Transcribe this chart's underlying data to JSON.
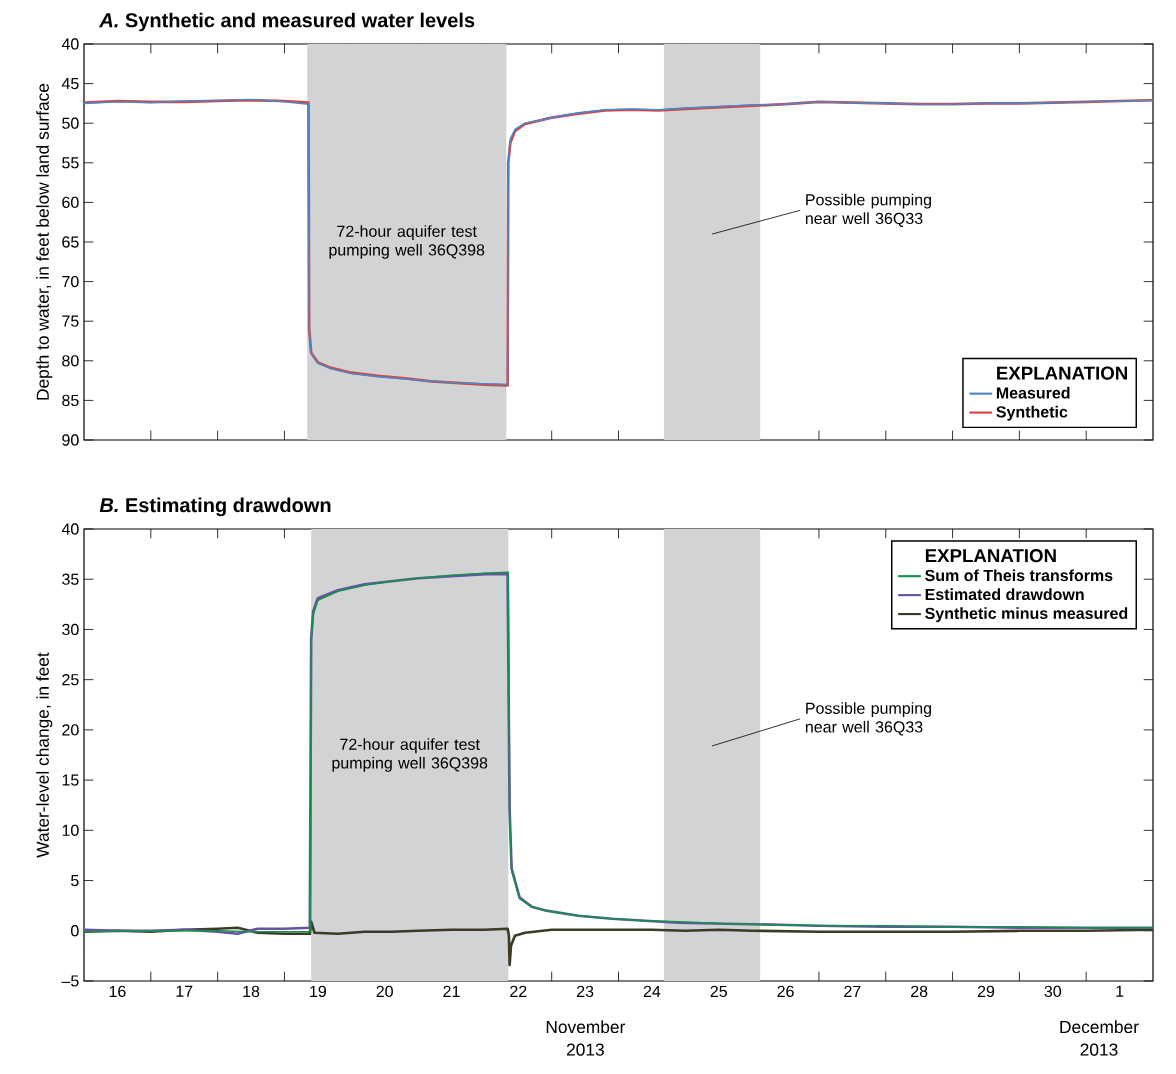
{
  "chart_data": [
    {
      "type": "line",
      "title": "*A.* Synthetic and measured water levels",
      "ylabel": "Depth to water, in feet below land surface",
      "legend_title": "EXPLANATION",
      "legend": "bottom right",
      "tick_labels": "y",
      "xlim": [
        "2013-11-16T00:00",
        "2013-12-02T00:00"
      ],
      "ylim": [
        90,
        40
      ],
      "yticks": [
        40,
        45,
        50,
        55,
        60,
        65,
        70,
        75,
        80,
        85,
        90
      ],
      "xticks": [
        {
          "value": "2013-11-17T00:00",
          "label": null
        },
        {
          "value": "2013-11-18T00:00",
          "label": null
        },
        {
          "value": "2013-11-19T00:00",
          "label": null
        },
        {
          "value": "2013-11-20T00:00",
          "label": null
        },
        {
          "value": "2013-11-21T00:00",
          "label": null
        },
        {
          "value": "2013-11-22T00:00",
          "label": null
        },
        {
          "value": "2013-11-23T00:00",
          "label": null
        },
        {
          "value": "2013-11-24T00:00",
          "label": null
        },
        {
          "value": "2013-11-25T00:00",
          "label": null
        },
        {
          "value": "2013-11-26T00:00",
          "label": null
        },
        {
          "value": "2013-11-27T00:00",
          "label": null
        },
        {
          "value": "2013-11-28T00:00",
          "label": null
        },
        {
          "value": "2013-11-29T00:00",
          "label": null
        },
        {
          "value": "2013-11-30T00:00",
          "label": null
        },
        {
          "value": "2013-12-01T00:00",
          "label": null
        }
      ],
      "bands": [
        {
          "axis": "x",
          "from": "2013-11-19T08:10",
          "to": "2013-11-22T07:41",
          "label": "72-hour aquifer test pumping well 36Q398",
          "color": "#d1d3d4"
        },
        {
          "axis": "x",
          "from": "2013-11-24T16:19",
          "to": "2013-11-26T02:53",
          "label": "Possible pumping near well 36Q33",
          "color": "#d1d3d4"
        }
      ],
      "series": [
        {
          "name": "Measured",
          "color": "#4a86c8",
          "x": [
            "2013-11-16T00:00",
            "2013-11-16T12:00",
            "2013-11-17T00:00",
            "2013-11-17T12:00",
            "2013-11-18T00:00",
            "2013-11-18T12:00",
            "2013-11-19T00:00",
            "2013-11-19T08:38",
            "2013-11-19T08:53",
            "2013-11-19T09:36",
            "2013-11-19T12:00",
            "2013-11-19T16:48",
            "2013-11-20T00:00",
            "2013-11-20T09:36",
            "2013-11-20T19:12",
            "2013-11-21T04:48",
            "2013-11-21T14:24",
            "2013-11-22T00:00",
            "2013-11-22T08:10",
            "2013-11-22T08:24",
            "2013-11-22T09:07",
            "2013-11-22T10:48",
            "2013-11-22T14:24",
            "2013-11-23T00:00",
            "2013-11-23T09:36",
            "2013-11-23T19:12",
            "2013-11-24T04:48",
            "2013-11-24T14:24",
            "2013-11-25T00:00",
            "2013-11-25T12:00",
            "2013-11-26T00:00",
            "2013-11-26T12:00",
            "2013-11-27T00:00",
            "2013-11-27T12:00",
            "2013-11-28T00:00",
            "2013-11-28T12:00",
            "2013-11-29T00:00",
            "2013-11-29T12:00",
            "2013-11-30T00:00",
            "2013-11-30T12:00",
            "2013-12-01T00:00",
            "2013-12-01T12:00",
            "2013-12-02T00:00"
          ],
          "values": [
            47.5,
            47.3,
            47.4,
            47.2,
            47.1,
            47.0,
            47.3,
            47.6,
            76,
            79,
            80.3,
            81,
            81.6,
            82,
            82.3,
            82.6,
            82.8,
            82.9,
            83,
            55,
            52,
            50.8,
            50,
            49.3,
            48.7,
            48.3,
            48.2,
            48.3,
            48.1,
            47.9,
            47.7,
            47.6,
            47.3,
            47.4,
            47.5,
            47.6,
            47.6,
            47.5,
            47.5,
            47.4,
            47.3,
            47.2,
            47.1
          ]
        },
        {
          "name": "Synthetic",
          "color": "#d9443f",
          "x": [
            "2013-11-16T00:00",
            "2013-11-16T12:00",
            "2013-11-17T00:00",
            "2013-11-17T12:00",
            "2013-11-18T00:00",
            "2013-11-18T12:00",
            "2013-11-19T00:00",
            "2013-11-19T08:38",
            "2013-11-19T08:53",
            "2013-11-19T09:36",
            "2013-11-19T12:00",
            "2013-11-19T16:48",
            "2013-11-20T00:00",
            "2013-11-20T09:36",
            "2013-11-20T19:12",
            "2013-11-21T04:48",
            "2013-11-21T14:24",
            "2013-11-22T00:00",
            "2013-11-22T08:10",
            "2013-11-22T08:24",
            "2013-11-22T09:07",
            "2013-11-22T10:48",
            "2013-11-22T14:24",
            "2013-11-23T00:00",
            "2013-11-23T09:36",
            "2013-11-23T19:12",
            "2013-11-24T04:48",
            "2013-11-24T14:24",
            "2013-11-25T00:00",
            "2013-11-25T12:00",
            "2013-11-26T00:00",
            "2013-11-26T12:00",
            "2013-11-27T00:00",
            "2013-11-27T12:00",
            "2013-11-28T00:00",
            "2013-11-28T12:00",
            "2013-11-29T00:00",
            "2013-11-29T12:00",
            "2013-11-30T00:00",
            "2013-11-30T12:00",
            "2013-12-01T00:00",
            "2013-12-01T12:00",
            "2013-12-02T00:00"
          ],
          "values": [
            47.4,
            47.2,
            47.3,
            47.3,
            47.2,
            47.1,
            47.2,
            47.4,
            76,
            79,
            80.2,
            80.9,
            81.5,
            81.9,
            82.2,
            82.6,
            82.8,
            83.0,
            83.1,
            55,
            52.5,
            51,
            50.1,
            49.3,
            48.8,
            48.4,
            48.3,
            48.4,
            48.2,
            48.0,
            47.8,
            47.6,
            47.3,
            47.4,
            47.5,
            47.6,
            47.6,
            47.5,
            47.5,
            47.4,
            47.3,
            47.2,
            47.1
          ]
        }
      ]
    },
    {
      "type": "line",
      "title": "*B.* Estimating drawdown",
      "ylabel": "Water-level change, in feet",
      "legend_title": "EXPLANATION",
      "legend": "top right",
      "xlim": [
        "2013-11-16T00:00",
        "2013-12-02T00:00"
      ],
      "ylim": [
        -5,
        40
      ],
      "yticks": [
        {
          "value": -5,
          "label": "–5"
        },
        0,
        5,
        10,
        15,
        20,
        25,
        30,
        35,
        40
      ],
      "xticks": [
        {
          "value": "2013-11-17T00:00",
          "label": null
        },
        {
          "value": "2013-11-18T00:00",
          "label": null
        },
        {
          "value": "2013-11-19T00:00",
          "label": null
        },
        {
          "value": "2013-11-20T00:00",
          "label": null
        },
        {
          "value": "2013-11-21T00:00",
          "label": null
        },
        {
          "value": "2013-11-22T00:00",
          "label": null
        },
        {
          "value": "2013-11-23T00:00",
          "label": null
        },
        {
          "value": "2013-11-24T00:00",
          "label": null
        },
        {
          "value": "2013-11-25T00:00",
          "label": null
        },
        {
          "value": "2013-11-26T00:00",
          "label": null
        },
        {
          "value": "2013-11-27T00:00",
          "label": null
        },
        {
          "value": "2013-11-28T00:00",
          "label": null
        },
        {
          "value": "2013-11-29T00:00",
          "label": null
        },
        {
          "value": "2013-11-30T00:00",
          "label": null
        },
        {
          "value": "2013-12-01T00:00",
          "label": null
        },
        {
          "value": "2013-11-16T12:00",
          "label": "16"
        },
        {
          "value": "2013-11-17T12:00",
          "label": "17"
        },
        {
          "value": "2013-11-18T12:00",
          "label": "18"
        },
        {
          "value": "2013-11-19T12:00",
          "label": "19"
        },
        {
          "value": "2013-11-20T12:00",
          "label": "20"
        },
        {
          "value": "2013-11-21T12:00",
          "label": "21"
        },
        {
          "value": "2013-11-22T12:00",
          "label": "22"
        },
        {
          "value": "2013-11-23T12:00",
          "label": "23"
        },
        {
          "value": "2013-11-24T12:00",
          "label": "24"
        },
        {
          "value": "2013-11-25T12:00",
          "label": "25"
        },
        {
          "value": "2013-11-26T12:00",
          "label": "26"
        },
        {
          "value": "2013-11-27T12:00",
          "label": "27"
        },
        {
          "value": "2013-11-28T12:00",
          "label": "28"
        },
        {
          "value": "2013-11-29T12:00",
          "label": "29"
        },
        {
          "value": "2013-11-30T12:00",
          "label": "30"
        },
        {
          "value": "2013-12-01T12:00",
          "label": "1"
        }
      ],
      "annotations": [
        "November 2013",
        "December 2013"
      ],
      "bands": [
        {
          "axis": "x",
          "from": "2013-11-19T09:36",
          "to": "2013-11-22T08:24",
          "label": "72-hour aquifer test pumping well 36Q398",
          "color": "#d1d3d4"
        },
        {
          "axis": "x",
          "from": "2013-11-24T16:19",
          "to": "2013-11-26T02:53",
          "label": "Possible pumping near well 36Q33",
          "color": "#d1d3d4"
        }
      ],
      "series": [
        {
          "name": "Sum of Theis transforms",
          "color": "#12924a",
          "x": [
            "2013-11-16T00:00",
            "2013-11-17T00:00",
            "2013-11-18T00:00",
            "2013-11-18T12:00",
            "2013-11-19T00:00",
            "2013-11-19T09:22",
            "2013-11-19T09:36",
            "2013-11-19T10:19",
            "2013-11-19T12:00",
            "2013-11-19T19:12",
            "2013-11-20T04:48",
            "2013-11-20T14:24",
            "2013-11-21T00:00",
            "2013-11-21T12:00",
            "2013-11-22T00:00",
            "2013-11-22T08:24",
            "2013-11-22T08:53",
            "2013-11-22T09:36",
            "2013-11-22T12:29",
            "2013-11-22T16:48",
            "2013-11-22T22:05",
            "2013-11-23T09:36",
            "2013-11-23T21:36",
            "2013-11-24T09:36",
            "2013-11-24T21:36",
            "2013-11-25T14:24",
            "2013-11-26T09:36",
            "2013-11-27T00:00",
            "2013-11-28T00:00",
            "2013-11-29T00:00",
            "2013-11-30T00:00",
            "2013-12-01T00:00",
            "2013-12-02T00:00"
          ],
          "values": [
            -0.1,
            0,
            0,
            -0.1,
            -0.1,
            -0.1,
            29,
            31.5,
            32.9,
            33.8,
            34.4,
            34.8,
            35.1,
            35.4,
            35.6,
            35.7,
            12,
            6,
            3.2,
            2.4,
            2.0,
            1.5,
            1.2,
            1.0,
            0.9,
            0.7,
            0.6,
            0.5,
            0.5,
            0.4,
            0.4,
            0.3,
            0.3
          ]
        },
        {
          "name": "Estimated drawdown",
          "color": "#6a51a3",
          "x": [
            "2013-11-16T00:00",
            "2013-11-16T12:00",
            "2013-11-17T00:00",
            "2013-11-17T12:00",
            "2013-11-18T00:00",
            "2013-11-18T07:12",
            "2013-11-18T14:24",
            "2013-11-19T00:00",
            "2013-11-19T09:07",
            "2013-11-19T09:36",
            "2013-11-19T10:19",
            "2013-11-19T12:00",
            "2013-11-19T19:12",
            "2013-11-20T04:48",
            "2013-11-20T14:24",
            "2013-11-21T00:00",
            "2013-11-21T12:00",
            "2013-11-22T00:00",
            "2013-11-22T08:10",
            "2013-11-22T08:53",
            "2013-11-22T09:36",
            "2013-11-22T12:29",
            "2013-11-22T16:48",
            "2013-11-22T22:05",
            "2013-11-23T09:36",
            "2013-11-23T21:36",
            "2013-11-24T09:36",
            "2013-11-24T21:36",
            "2013-11-25T14:24",
            "2013-11-26T09:36",
            "2013-11-27T00:00",
            "2013-11-28T00:00",
            "2013-11-29T00:00",
            "2013-11-30T00:00",
            "2013-12-01T00:00",
            "2013-12-02T00:00"
          ],
          "values": [
            0.1,
            0,
            0,
            0.1,
            -0.1,
            -0.3,
            0.2,
            0.2,
            0.3,
            29,
            31.8,
            33.1,
            33.9,
            34.5,
            34.8,
            35.1,
            35.3,
            35.5,
            35.5,
            12,
            6.2,
            3.3,
            2.4,
            2.0,
            1.5,
            1.2,
            1.0,
            0.8,
            0.7,
            0.6,
            0.5,
            0.4,
            0.4,
            0.3,
            0.3,
            0.3
          ]
        },
        {
          "name": "Synthetic minus measured",
          "color": "#3d3a25",
          "x": [
            "2013-11-16T00:00",
            "2013-11-16T12:00",
            "2013-11-17T00:00",
            "2013-11-17T12:00",
            "2013-11-18T00:00",
            "2013-11-18T07:12",
            "2013-11-18T14:24",
            "2013-11-19T00:00",
            "2013-11-19T09:07",
            "2013-11-19T09:36",
            "2013-11-19T10:48",
            "2013-11-19T19:12",
            "2013-11-20T04:48",
            "2013-11-20T14:24",
            "2013-11-21T00:00",
            "2013-11-21T12:00",
            "2013-11-22T00:00",
            "2013-11-22T08:10",
            "2013-11-22T08:38",
            "2013-11-22T08:53",
            "2013-11-22T09:22",
            "2013-11-22T10:48",
            "2013-11-22T14:24",
            "2013-11-23T00:00",
            "2013-11-23T12:00",
            "2013-11-24T00:00",
            "2013-11-24T12:00",
            "2013-11-25T00:00",
            "2013-11-25T12:00",
            "2013-11-26T00:00",
            "2013-11-27T00:00",
            "2013-11-28T00:00",
            "2013-11-29T00:00",
            "2013-11-30T00:00",
            "2013-12-01T00:00",
            "2013-12-02T00:00"
          ],
          "values": [
            -0.1,
            0,
            -0.1,
            0.1,
            0.2,
            0.3,
            -0.2,
            -0.3,
            -0.3,
            0.9,
            -0.2,
            -0.3,
            -0.1,
            -0.1,
            0,
            0.1,
            0.1,
            0.2,
            -0.5,
            -3.4,
            -1.5,
            -0.5,
            -0.2,
            0.1,
            0.1,
            0.1,
            0.1,
            0,
            0.1,
            0,
            -0.1,
            -0.1,
            -0.1,
            0,
            0,
            0.1
          ]
        }
      ]
    }
  ]
}
